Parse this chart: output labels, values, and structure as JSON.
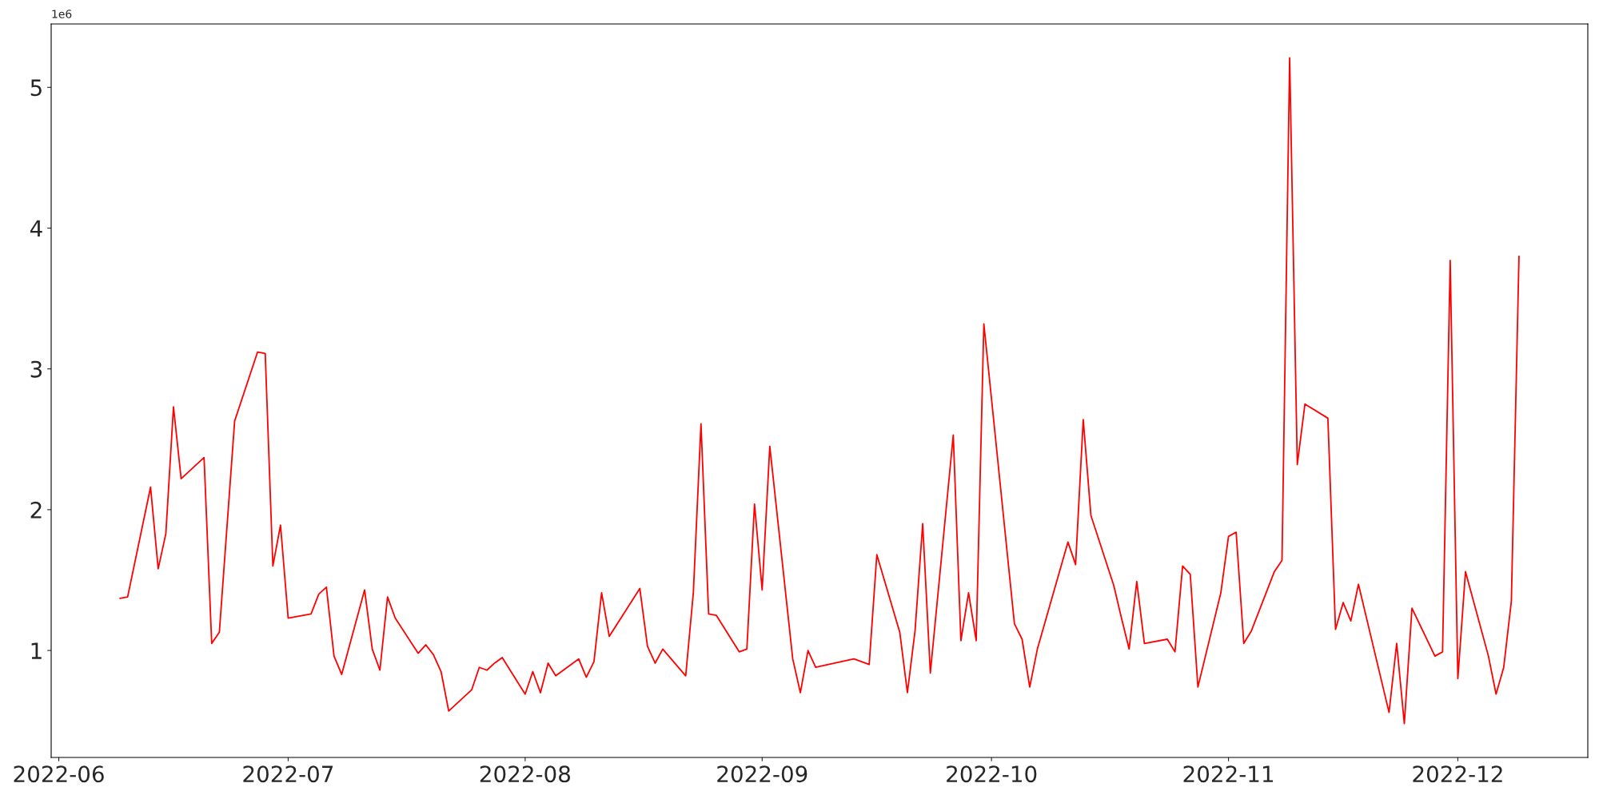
{
  "chart_data": {
    "type": "line",
    "x": [
      "2022-06-09",
      "2022-06-10",
      "2022-06-13",
      "2022-06-14",
      "2022-06-15",
      "2022-06-16",
      "2022-06-17",
      "2022-06-20",
      "2022-06-21",
      "2022-06-22",
      "2022-06-24",
      "2022-06-27",
      "2022-06-28",
      "2022-06-29",
      "2022-06-30",
      "2022-07-01",
      "2022-07-04",
      "2022-07-05",
      "2022-07-06",
      "2022-07-07",
      "2022-07-08",
      "2022-07-11",
      "2022-07-12",
      "2022-07-13",
      "2022-07-14",
      "2022-07-15",
      "2022-07-18",
      "2022-07-19",
      "2022-07-20",
      "2022-07-21",
      "2022-07-22",
      "2022-07-25",
      "2022-07-26",
      "2022-07-27",
      "2022-07-28",
      "2022-07-29",
      "2022-08-01",
      "2022-08-02",
      "2022-08-03",
      "2022-08-04",
      "2022-08-05",
      "2022-08-08",
      "2022-08-09",
      "2022-08-10",
      "2022-08-11",
      "2022-08-12",
      "2022-08-16",
      "2022-08-17",
      "2022-08-18",
      "2022-08-19",
      "2022-08-22",
      "2022-08-23",
      "2022-08-24",
      "2022-08-25",
      "2022-08-26",
      "2022-08-29",
      "2022-08-30",
      "2022-08-31",
      "2022-09-01",
      "2022-09-02",
      "2022-09-05",
      "2022-09-06",
      "2022-09-07",
      "2022-09-08",
      "2022-09-13",
      "2022-09-15",
      "2022-09-16",
      "2022-09-19",
      "2022-09-20",
      "2022-09-21",
      "2022-09-22",
      "2022-09-23",
      "2022-09-26",
      "2022-09-27",
      "2022-09-28",
      "2022-09-29",
      "2022-09-30",
      "2022-10-04",
      "2022-10-05",
      "2022-10-06",
      "2022-10-07",
      "2022-10-11",
      "2022-10-12",
      "2022-10-13",
      "2022-10-14",
      "2022-10-17",
      "2022-10-18",
      "2022-10-19",
      "2022-10-20",
      "2022-10-21",
      "2022-10-24",
      "2022-10-25",
      "2022-10-26",
      "2022-10-27",
      "2022-10-28",
      "2022-10-31",
      "2022-11-01",
      "2022-11-02",
      "2022-11-03",
      "2022-11-04",
      "2022-11-07",
      "2022-11-08",
      "2022-11-09",
      "2022-11-10",
      "2022-11-11",
      "2022-11-14",
      "2022-11-15",
      "2022-11-16",
      "2022-11-17",
      "2022-11-18",
      "2022-11-22",
      "2022-11-23",
      "2022-11-24",
      "2022-11-25",
      "2022-11-28",
      "2022-11-29",
      "2022-11-30",
      "2022-12-01",
      "2022-12-02",
      "2022-12-05",
      "2022-12-06",
      "2022-12-07",
      "2022-12-08",
      "2022-12-09"
    ],
    "series": [
      {
        "color": "#ff0000",
        "values": [
          1.37,
          1.38,
          2.16,
          1.58,
          1.83,
          2.73,
          2.22,
          2.37,
          1.05,
          1.13,
          2.63,
          3.12,
          3.11,
          1.6,
          1.89,
          1.23,
          1.26,
          1.4,
          1.45,
          0.96,
          0.83,
          1.43,
          1.01,
          0.86,
          1.38,
          1.23,
          0.98,
          1.04,
          0.97,
          0.85,
          0.57,
          0.72,
          0.88,
          0.86,
          0.91,
          0.95,
          0.69,
          0.85,
          0.7,
          0.91,
          0.82,
          0.94,
          0.81,
          0.92,
          1.41,
          1.1,
          1.44,
          1.03,
          0.91,
          1.01,
          0.82,
          1.41,
          2.61,
          1.26,
          1.25,
          0.99,
          1.01,
          2.04,
          1.43,
          2.45,
          0.94,
          0.7,
          1.0,
          0.88,
          0.94,
          0.9,
          1.68,
          1.13,
          0.7,
          1.14,
          1.9,
          0.84,
          2.53,
          1.07,
          1.41,
          1.07,
          3.32,
          1.19,
          1.08,
          0.74,
          1.01,
          1.77,
          1.61,
          2.64,
          1.96,
          1.46,
          1.23,
          1.01,
          1.49,
          1.05,
          1.08,
          0.99,
          1.6,
          1.54,
          0.74,
          1.41,
          1.81,
          1.84,
          1.05,
          1.14,
          1.56,
          1.64,
          5.21,
          2.32,
          2.75,
          2.65,
          1.15,
          1.34,
          1.21,
          1.47,
          0.56,
          1.05,
          0.48,
          1.3,
          0.96,
          0.99,
          3.77,
          0.8,
          1.56,
          0.96,
          0.69,
          0.88,
          1.35,
          3.8
        ]
      }
    ],
    "xlim": [
      "2022-05-31",
      "2022-12-18"
    ],
    "xticks": [
      {
        "value": "2022-06-01",
        "label": "2022-06"
      },
      {
        "value": "2022-07-01",
        "label": "2022-07"
      },
      {
        "value": "2022-08-01",
        "label": "2022-08"
      },
      {
        "value": "2022-09-01",
        "label": "2022-09"
      },
      {
        "value": "2022-10-01",
        "label": "2022-10"
      },
      {
        "value": "2022-11-01",
        "label": "2022-11"
      },
      {
        "value": "2022-12-01",
        "label": "2022-12"
      }
    ],
    "ylim": [
      0.24,
      5.45
    ],
    "yticks": [
      1,
      2,
      3,
      4,
      5
    ],
    "annotations": [
      "1e6"
    ],
    "grid": false,
    "marker": "none",
    "line_style": "solid"
  }
}
